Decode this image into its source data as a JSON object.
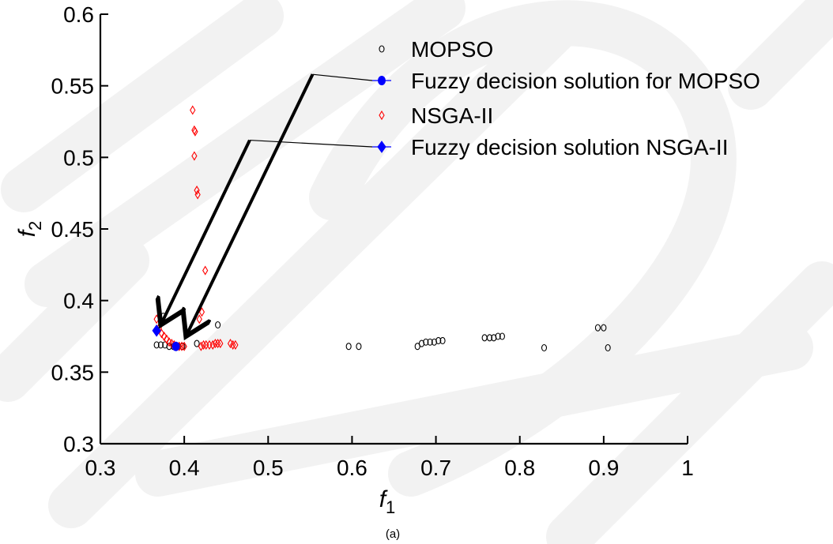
{
  "chart_data": {
    "type": "scatter",
    "xlabel": "f1",
    "ylabel": "f2",
    "xlim": [
      0.3,
      1.0
    ],
    "ylim": [
      0.3,
      0.6
    ],
    "x_ticks": [
      "0.3",
      "0.4",
      "0.5",
      "0.6",
      "0.7",
      "0.8",
      "0.9",
      "1"
    ],
    "y_ticks": [
      "0.3",
      "0.35",
      "0.4",
      "0.45",
      "0.5",
      "0.55",
      "0.6"
    ],
    "grid": false,
    "legend_position": "top-right",
    "caption": "(a)",
    "series": [
      {
        "name": "MOPSO",
        "marker": "open-circle",
        "color": "#000000",
        "points": [
          [
            0.367,
            0.369
          ],
          [
            0.372,
            0.369
          ],
          [
            0.377,
            0.369
          ],
          [
            0.382,
            0.368
          ],
          [
            0.387,
            0.368
          ],
          [
            0.392,
            0.368
          ],
          [
            0.398,
            0.368
          ],
          [
            0.375,
            0.389
          ],
          [
            0.415,
            0.37
          ],
          [
            0.44,
            0.383
          ],
          [
            0.596,
            0.368
          ],
          [
            0.608,
            0.368
          ],
          [
            0.678,
            0.368
          ],
          [
            0.683,
            0.37
          ],
          [
            0.688,
            0.371
          ],
          [
            0.693,
            0.371
          ],
          [
            0.698,
            0.371
          ],
          [
            0.703,
            0.372
          ],
          [
            0.708,
            0.372
          ],
          [
            0.758,
            0.374
          ],
          [
            0.764,
            0.374
          ],
          [
            0.769,
            0.374
          ],
          [
            0.774,
            0.375
          ],
          [
            0.779,
            0.375
          ],
          [
            0.829,
            0.367
          ],
          [
            0.893,
            0.381
          ],
          [
            0.9,
            0.381
          ],
          [
            0.905,
            0.367
          ]
        ]
      },
      {
        "name": "Fuzzy decision solution for MOPSO",
        "marker": "filled-circle",
        "color": "#0000ff",
        "points": [
          [
            0.39,
            0.368
          ]
        ]
      },
      {
        "name": "NSGA-II",
        "marker": "open-diamond",
        "color": "#ff0000",
        "points": [
          [
            0.41,
            0.533
          ],
          [
            0.412,
            0.519
          ],
          [
            0.413,
            0.518
          ],
          [
            0.412,
            0.501
          ],
          [
            0.415,
            0.477
          ],
          [
            0.416,
            0.474
          ],
          [
            0.425,
            0.421
          ],
          [
            0.421,
            0.392
          ],
          [
            0.418,
            0.387
          ],
          [
            0.367,
            0.387
          ],
          [
            0.37,
            0.381
          ],
          [
            0.373,
            0.377
          ],
          [
            0.376,
            0.375
          ],
          [
            0.379,
            0.373
          ],
          [
            0.382,
            0.371
          ],
          [
            0.385,
            0.37
          ],
          [
            0.388,
            0.369
          ],
          [
            0.391,
            0.368
          ],
          [
            0.394,
            0.368
          ],
          [
            0.397,
            0.368
          ],
          [
            0.4,
            0.368
          ],
          [
            0.42,
            0.368
          ],
          [
            0.423,
            0.369
          ],
          [
            0.426,
            0.369
          ],
          [
            0.43,
            0.369
          ],
          [
            0.434,
            0.369
          ],
          [
            0.437,
            0.37
          ],
          [
            0.44,
            0.37
          ],
          [
            0.443,
            0.37
          ],
          [
            0.455,
            0.37
          ],
          [
            0.458,
            0.369
          ],
          [
            0.461,
            0.369
          ]
        ]
      },
      {
        "name": "Fuzzy decision solution NSGA-II",
        "marker": "filled-diamond",
        "color": "#0000ff",
        "points": [
          [
            0.367,
            0.379
          ]
        ]
      }
    ],
    "annotations": [
      {
        "type": "pointer",
        "from_legend_entry": "Fuzzy decision solution for MOPSO",
        "elbow": [
          0.553,
          0.558
        ],
        "target": [
          0.402,
          0.375
        ]
      },
      {
        "type": "pointer",
        "from_legend_entry": "Fuzzy decision solution NSGA-II",
        "elbow": [
          0.478,
          0.512
        ],
        "target": [
          0.372,
          0.383
        ]
      }
    ]
  }
}
